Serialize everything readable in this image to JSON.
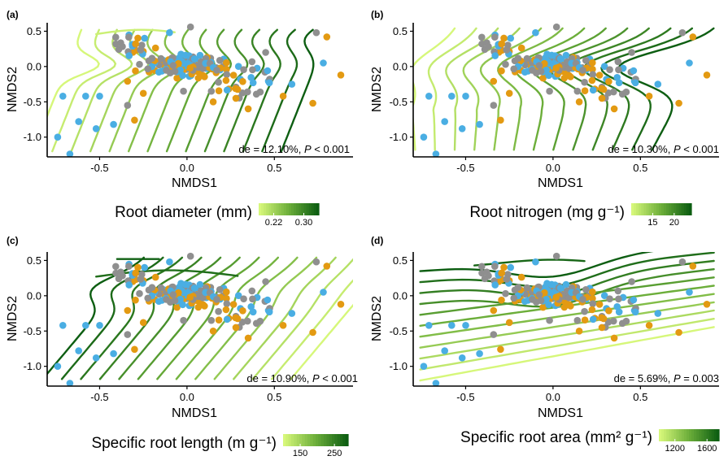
{
  "colors": {
    "gradient_low": "#d6f77a",
    "gradient_mid": "#6cae3a",
    "gradient_high": "#0d5e12",
    "points": [
      "#4aaee3",
      "#8f8f8f",
      "#e39a12"
    ]
  },
  "chart_data": [
    {
      "type": "scatter",
      "panel_label": "(a)",
      "xlabel": "NMDS1",
      "ylabel": "NMDS2",
      "xlim": [
        -0.8,
        0.95
      ],
      "ylim": [
        -1.28,
        0.62
      ],
      "xticks": [
        "-0.5",
        "0.0",
        "0.5"
      ],
      "yticks": [
        "0.5",
        "0.0",
        "-0.5",
        "-1.0"
      ],
      "annotation_de": "de = 12.10%, ",
      "annotation_p_symbol": "P",
      "annotation_p": " < 0.001",
      "legend_title": "Root diameter",
      "legend_unit": "(mm)",
      "legend_ticks": [
        "0.22",
        "0.30"
      ],
      "legend_range": [
        0.18,
        0.34
      ],
      "surface": "a"
    },
    {
      "type": "scatter",
      "panel_label": "(b)",
      "xlabel": "NMDS1",
      "ylabel": "NMDS2",
      "xlim": [
        -0.8,
        0.95
      ],
      "ylim": [
        -1.28,
        0.62
      ],
      "xticks": [
        "-0.5",
        "0.0",
        "0.5"
      ],
      "yticks": [
        "0.5",
        "0.0",
        "-0.5",
        "-1.0"
      ],
      "annotation_de": "de = 10.30%, ",
      "annotation_p_symbol": "P",
      "annotation_p": " < 0.001",
      "legend_title": "Root nitrogen",
      "legend_unit": "(mg g⁻¹)",
      "legend_ticks": [
        "15",
        "20"
      ],
      "legend_range": [
        10,
        24
      ],
      "surface": "b"
    },
    {
      "type": "scatter",
      "panel_label": "(c)",
      "xlabel": "NMDS1",
      "ylabel": "NMDS2",
      "xlim": [
        -0.8,
        0.95
      ],
      "ylim": [
        -1.28,
        0.62
      ],
      "xticks": [
        "-0.5",
        "0.0",
        "0.5"
      ],
      "yticks": [
        "0.5",
        "0.0",
        "-0.5",
        "-1.0"
      ],
      "annotation_de": "de = 10.90%, ",
      "annotation_p_symbol": "P",
      "annotation_p": " < 0.001",
      "legend_title": "Specific root length",
      "legend_unit": "(m g⁻¹)",
      "legend_ticks": [
        "150",
        "250"
      ],
      "legend_range": [
        100,
        290
      ],
      "surface": "c"
    },
    {
      "type": "scatter",
      "panel_label": "(d)",
      "xlabel": "NMDS1",
      "ylabel": "NMDS2",
      "xlim": [
        -0.8,
        0.95
      ],
      "ylim": [
        -1.28,
        0.62
      ],
      "xticks": [
        "-0.5",
        "0.0",
        "0.5"
      ],
      "yticks": [
        "0.5",
        "0.0",
        "-0.5",
        "-1.0"
      ],
      "annotation_de": "de = 5.69%, ",
      "annotation_p_symbol": "P",
      "annotation_p": " = 0.003",
      "legend_title": "Specific root area",
      "legend_unit": "(mm² g⁻¹)",
      "legend_ticks": [
        "1200",
        "1600"
      ],
      "legend_range": [
        1000,
        1750
      ],
      "surface": "d"
    }
  ]
}
